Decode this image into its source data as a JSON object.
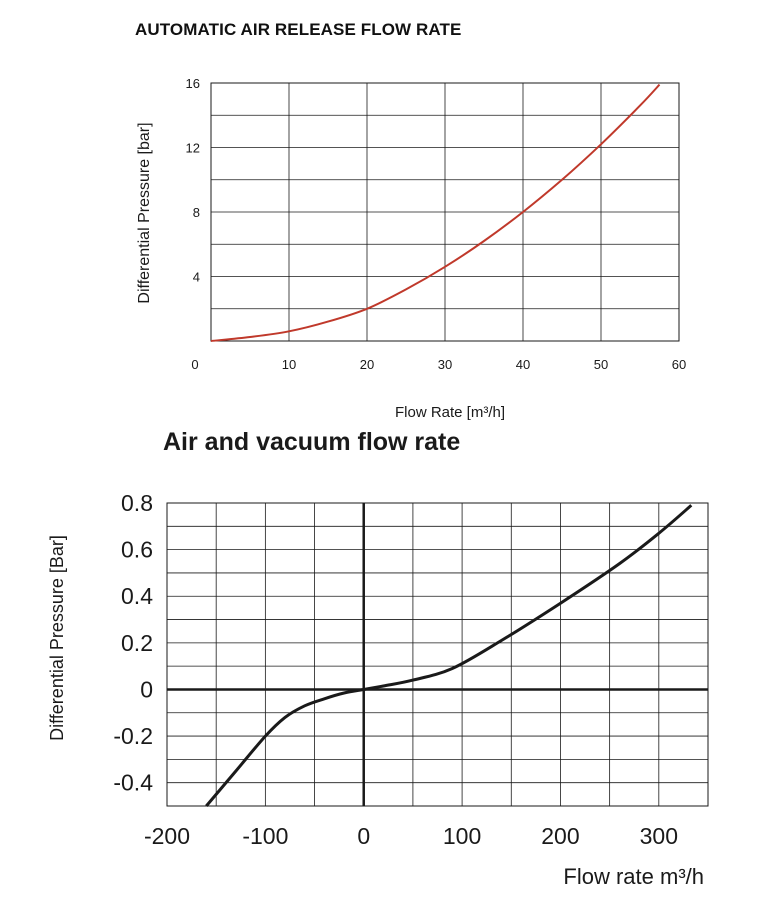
{
  "chart_data": [
    {
      "type": "line",
      "title": "AUTOMATIC AIR RELEASE FLOW RATE",
      "xlabel": "Flow Rate [m³/h]",
      "ylabel": "Differential Pressure [bar]",
      "xlim": [
        0,
        60
      ],
      "ylim": [
        0,
        16
      ],
      "x_ticks": [
        0,
        10,
        20,
        30,
        40,
        50,
        60
      ],
      "y_ticks": [
        4,
        8,
        12,
        16
      ],
      "x_tick_labels": [
        "0",
        "10",
        "20",
        "30",
        "40",
        "50",
        "60"
      ],
      "y_tick_labels": [
        "4",
        "8",
        "12",
        "16"
      ],
      "grid": true,
      "line_color": "#c0392b",
      "series": [
        {
          "x": [
            0,
            5,
            10,
            15,
            20,
            25,
            30,
            35,
            40,
            45,
            50,
            55,
            57.5
          ],
          "y": [
            0,
            0.25,
            0.6,
            1.2,
            2.0,
            3.2,
            4.6,
            6.2,
            8.0,
            10.0,
            12.2,
            14.6,
            15.9
          ]
        }
      ]
    },
    {
      "type": "line",
      "title": "Air and vacuum flow rate",
      "xlabel": "Flow rate m³/h",
      "ylabel": "Differential Pressure [Bar]",
      "xlim": [
        -200,
        350
      ],
      "ylim": [
        -0.5,
        0.8
      ],
      "x_ticks": [
        -200,
        -100,
        0,
        100,
        200,
        300
      ],
      "y_ticks": [
        -0.4,
        -0.2,
        0,
        0.2,
        0.4,
        0.6,
        0.8
      ],
      "x_tick_labels": [
        "-200",
        "-100",
        "0",
        "100",
        "200",
        "300"
      ],
      "y_tick_labels": [
        "-0.4",
        "-0.2",
        "0",
        "0.2",
        "0.4",
        "0.6",
        "0.8"
      ],
      "grid": true,
      "line_color": "#1a1a1a",
      "series": [
        {
          "x": [
            -160,
            -130,
            -100,
            -80,
            -60,
            -40,
            -20,
            0,
            20,
            50,
            90,
            140,
            200,
            260,
            300,
            333
          ],
          "y": [
            -0.5,
            -0.35,
            -0.2,
            -0.12,
            -0.07,
            -0.04,
            -0.015,
            0,
            0.015,
            0.04,
            0.09,
            0.21,
            0.37,
            0.54,
            0.67,
            0.79
          ]
        }
      ]
    }
  ]
}
